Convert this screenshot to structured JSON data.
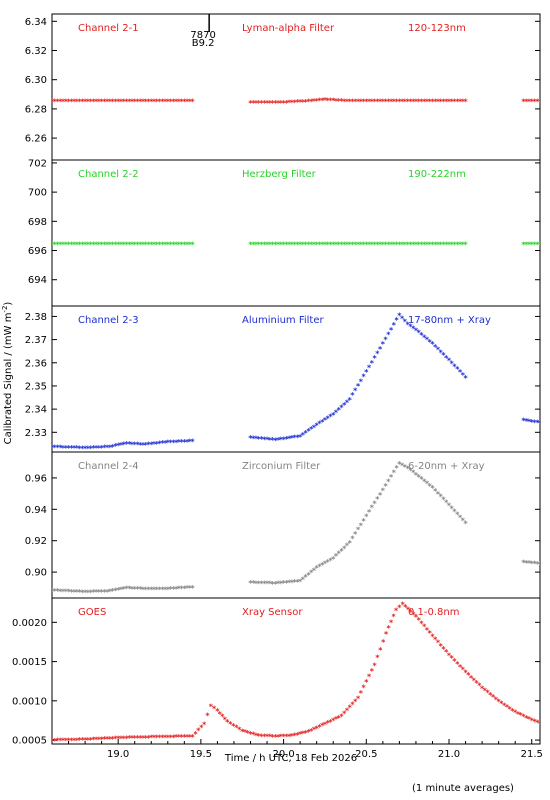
{
  "figure": {
    "ylabel": "Calibrated Signal / (mW m",
    "ylabel_sup": "-2",
    "ylabel_end": ")",
    "xlabel": "Time / h UTC, 18 Feb 2026",
    "footnote": "(1 minute averages)",
    "marker_line1": "7870",
    "marker_line2": "B9.2",
    "marker_x": 19.55
  },
  "chart_data": [
    {
      "type": "scatter",
      "channel": "Channel 2-1",
      "filter": "Lyman-alpha Filter",
      "band": "120-123nm",
      "color": "#e32020",
      "ylim": [
        6.245,
        6.345
      ],
      "yticks": [
        6.26,
        6.28,
        6.3,
        6.32,
        6.34
      ],
      "ytick_labels": [
        "6.26",
        "6.28",
        "6.30",
        "6.32",
        "6.34"
      ],
      "xlim": [
        18.6,
        21.55
      ],
      "segments": [
        {
          "x": [
            18.6,
            19.45
          ],
          "y": [
            6.285,
            6.285
          ]
        },
        {
          "x": [
            19.8,
            20.0,
            20.15,
            20.25,
            20.4,
            20.7,
            21.1
          ],
          "y": [
            6.284,
            6.284,
            6.285,
            6.286,
            6.285,
            6.285,
            6.285
          ]
        },
        {
          "x": [
            21.45,
            21.55
          ],
          "y": [
            6.285,
            6.285
          ]
        }
      ]
    },
    {
      "type": "scatter",
      "channel": "Channel 2-2",
      "filter": "Herzberg Filter",
      "band": "190-222nm",
      "color": "#2ad12a",
      "ylim": [
        692.2,
        702.2
      ],
      "yticks": [
        694,
        696,
        698,
        700,
        702
      ],
      "ytick_labels": [
        "694",
        "696",
        "698",
        "700",
        "702"
      ],
      "xlim": [
        18.6,
        21.55
      ],
      "segments": [
        {
          "x": [
            18.6,
            19.45
          ],
          "y": [
            696.4,
            696.4
          ]
        },
        {
          "x": [
            19.8,
            21.1
          ],
          "y": [
            696.4,
            696.4
          ]
        },
        {
          "x": [
            21.45,
            21.55
          ],
          "y": [
            696.4,
            696.4
          ]
        }
      ]
    },
    {
      "type": "scatter",
      "channel": "Channel 2-3",
      "filter": "Aluminium Filter",
      "band": "17-80nm + Xray",
      "color": "#1c2ed1",
      "ylim": [
        2.3215,
        2.3845
      ],
      "yticks": [
        2.33,
        2.34,
        2.35,
        2.36,
        2.37,
        2.38
      ],
      "ytick_labels": [
        "2.33",
        "2.34",
        "2.35",
        "2.36",
        "2.37",
        "2.38"
      ],
      "xlim": [
        18.6,
        21.55
      ],
      "segments": [
        {
          "x": [
            18.6,
            18.8,
            18.95,
            19.05,
            19.15,
            19.3,
            19.45
          ],
          "y": [
            2.3235,
            2.323,
            2.3235,
            2.325,
            2.3245,
            2.3255,
            2.326
          ]
        },
        {
          "x": [
            19.8,
            19.95,
            20.1,
            20.2,
            20.3,
            20.4,
            20.5,
            20.6,
            20.7,
            20.75,
            20.8,
            20.9,
            21.0,
            21.1
          ],
          "y": [
            2.3275,
            2.3265,
            2.328,
            2.333,
            2.3375,
            2.344,
            2.356,
            2.368,
            2.3805,
            2.3765,
            2.374,
            2.368,
            2.361,
            2.3535
          ]
        },
        {
          "x": [
            21.45,
            21.55
          ],
          "y": [
            2.335,
            2.334
          ]
        }
      ]
    },
    {
      "type": "scatter",
      "channel": "Channel 2-4",
      "filter": "Zirconium Filter",
      "band": "6-20nm + Xray",
      "color": "#858585",
      "ylim": [
        0.8835,
        0.9765
      ],
      "yticks": [
        0.9,
        0.92,
        0.94,
        0.96
      ],
      "ytick_labels": [
        "0.90",
        "0.92",
        "0.94",
        "0.96"
      ],
      "xlim": [
        18.6,
        21.55
      ],
      "segments": [
        {
          "x": [
            18.6,
            18.8,
            18.95,
            19.05,
            19.15,
            19.3,
            19.45
          ],
          "y": [
            0.888,
            0.887,
            0.8875,
            0.8895,
            0.889,
            0.889,
            0.89
          ]
        },
        {
          "x": [
            19.8,
            19.95,
            20.1,
            20.2,
            20.3,
            20.4,
            20.5,
            20.6,
            20.7,
            20.75,
            20.8,
            20.9,
            21.0,
            21.1
          ],
          "y": [
            0.893,
            0.8925,
            0.894,
            0.9025,
            0.9085,
            0.9185,
            0.9355,
            0.952,
            0.969,
            0.966,
            0.962,
            0.9535,
            0.9425,
            0.931
          ]
        },
        {
          "x": [
            21.45,
            21.55
          ],
          "y": [
            0.906,
            0.905
          ]
        }
      ]
    },
    {
      "type": "scatter",
      "channel": "GOES",
      "filter": "Xray Sensor",
      "band": "0.1-0.8nm",
      "color": "#e32020",
      "ylim": [
        0.00045,
        0.00231
      ],
      "yticks": [
        0.0005,
        0.001,
        0.0015,
        0.002
      ],
      "ytick_labels": [
        "0.0005",
        "0.0010",
        "0.0015",
        "0.0020"
      ],
      "xlim": [
        18.6,
        21.55
      ],
      "xticks": [
        19.0,
        19.5,
        20.0,
        20.5,
        21.0,
        21.5
      ],
      "xtick_labels": [
        "19.0",
        "19.5",
        "20.0",
        "20.5",
        "21.0",
        "21.5"
      ],
      "segments": [
        {
          "x": [
            18.6,
            18.8,
            19.0,
            19.2,
            19.45,
            19.52,
            19.56,
            19.6,
            19.66,
            19.75,
            19.85,
            19.95,
            20.05,
            20.15,
            20.25,
            20.35,
            20.45,
            20.55,
            20.62,
            20.68,
            20.72,
            20.8,
            20.9,
            21.0,
            21.1,
            21.2,
            21.3,
            21.4,
            21.5,
            21.55
          ],
          "y": [
            0.00049,
            0.0005,
            0.00052,
            0.00053,
            0.00054,
            0.0007,
            0.00093,
            0.00087,
            0.00073,
            0.00061,
            0.00055,
            0.00054,
            0.00055,
            0.0006,
            0.0007,
            0.0008,
            0.00103,
            0.00145,
            0.00185,
            0.00215,
            0.00223,
            0.00207,
            0.00182,
            0.00158,
            0.00136,
            0.00116,
            0.00099,
            0.00085,
            0.00075,
            0.00071
          ]
        }
      ]
    }
  ]
}
